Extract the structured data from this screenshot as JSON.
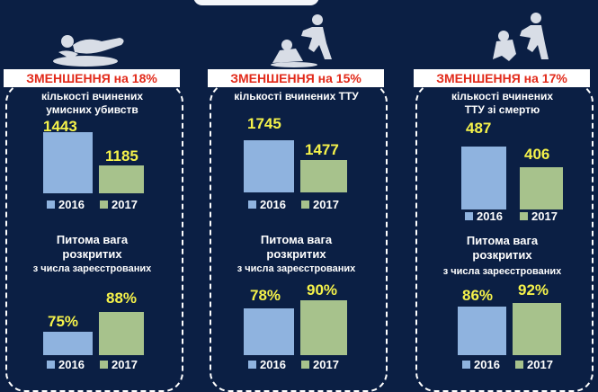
{
  "colors": {
    "bar_2016": "#8fb3df",
    "bar_2017": "#a7c28c",
    "value": "#f5f24a",
    "headline": "#e22a1a"
  },
  "panels": [
    {
      "icon": "body-outline-icon",
      "headline": "ЗМЕНШЕННЯ на 18%",
      "caption": [
        "кількості вчинених",
        "умисних убивств"
      ],
      "counts": {
        "2016": "1443",
        "2017": "1185"
      },
      "share_title": [
        "Питома вага",
        "розкритих"
      ],
      "share_sub": "з числа зареєстрованих",
      "shares": {
        "2016": "75%",
        "2017": "88%"
      }
    },
    {
      "icon": "assault-icon",
      "headline": "ЗМЕНШЕННЯ на 15%",
      "caption": [
        "кількості вчинених ТТУ"
      ],
      "counts": {
        "2016": "1745",
        "2017": "1477"
      },
      "share_title": [
        "Питома вага",
        "розкритих"
      ],
      "share_sub": "з числа зареєстрованих",
      "shares": {
        "2016": "78%",
        "2017": "90%"
      }
    },
    {
      "icon": "attack-icon",
      "headline": "ЗМЕНШЕННЯ на 17%",
      "caption": [
        "кількості вчинених",
        "ТТУ зі смертю"
      ],
      "counts": {
        "2016": "487",
        "2017": "406"
      },
      "share_title": [
        "Питома вага",
        "розкритих"
      ],
      "share_sub": "з числа зареєстрованих",
      "shares": {
        "2016": "86%",
        "2017": "92%"
      }
    }
  ],
  "legend": {
    "y2016": "2016",
    "y2017": "2017"
  },
  "chart_data": [
    {
      "type": "bar",
      "categories": [
        "2016",
        "2017"
      ],
      "values": [
        1443,
        1185
      ]
    },
    {
      "type": "bar",
      "categories": [
        "2016",
        "2017"
      ],
      "values": [
        75,
        88
      ]
    },
    {
      "type": "bar",
      "categories": [
        "2016",
        "2017"
      ],
      "values": [
        1745,
        1477
      ]
    },
    {
      "type": "bar",
      "categories": [
        "2016",
        "2017"
      ],
      "values": [
        78,
        90
      ]
    },
    {
      "type": "bar",
      "categories": [
        "2016",
        "2017"
      ],
      "values": [
        487,
        406
      ]
    },
    {
      "type": "bar",
      "categories": [
        "2016",
        "2017"
      ],
      "values": [
        86,
        92
      ]
    }
  ]
}
